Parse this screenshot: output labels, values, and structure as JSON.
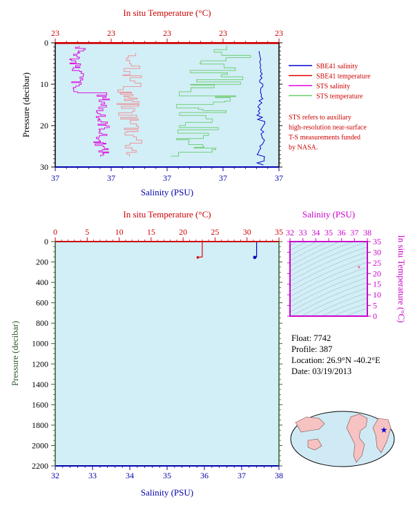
{
  "colors": {
    "plot_bg": "#d2eef7",
    "temperature_axis": "#cc0000",
    "salinity_axis": "#0000aa",
    "pressure_axis": "#2e5a2e",
    "ts_axis": "#cc00cc",
    "sbe_salinity": "#0000cc",
    "sbe_temperature": "#dd0000",
    "sts_salinity": "#dd00dd",
    "sts_temperature": "#66cc66",
    "sts_temperature_pink": "#f08a8a",
    "land": "#f6c2c2"
  },
  "top_panel": {
    "title_top": "In situ Temperature (°C)",
    "xlabel_bottom": "Salinity (PSU)",
    "ylabel": "Pressure (decibar)",
    "top_ticks": [
      "23",
      "23",
      "23",
      "23",
      "23"
    ],
    "bottom_ticks": [
      "37",
      "37",
      "37",
      "37",
      "37"
    ],
    "y_ticks": [
      "0",
      "10",
      "20",
      "30"
    ]
  },
  "legend": {
    "items": [
      "SBE41 salinity",
      "SBE41 temperature",
      "STS salinity",
      "STS temperature"
    ],
    "note_lines": [
      "STS refers to auxiliary",
      "high-resolution near-surface",
      "T-S measurements funded",
      "by NASA."
    ]
  },
  "bottom_panel": {
    "title_top": "In situ Temperature (°C)",
    "xlabel_bottom": "Salinity (PSU)",
    "ylabel": "Pressure (decibar)",
    "top_ticks": [
      "0",
      "5",
      "10",
      "15",
      "20",
      "25",
      "30",
      "35"
    ],
    "bottom_ticks": [
      "32",
      "33",
      "34",
      "35",
      "36",
      "37",
      "38"
    ],
    "y_ticks": [
      "0",
      "200",
      "400",
      "600",
      "800",
      "1000",
      "1200",
      "1400",
      "1600",
      "1800",
      "2000",
      "2200"
    ]
  },
  "ts_panel": {
    "title": "Salinity (PSU)",
    "ylabel": "In situ Temperature (°C)",
    "x_ticks": [
      "32",
      "33",
      "34",
      "35",
      "36",
      "37",
      "38"
    ],
    "y_ticks": [
      "0",
      "5",
      "10",
      "15",
      "20",
      "25",
      "30",
      "35"
    ]
  },
  "float_info": {
    "float": "Float:  7742",
    "profile": "Profile:  387",
    "location": "Location:  26.9°N  -40.2°E",
    "date": "Date:  03/19/2013"
  },
  "chart_data": [
    {
      "type": "line",
      "title": "",
      "ylabel": "Pressure (decibar)",
      "ylim": [
        0,
        30
      ],
      "x_top_label": "In situ Temperature (°C)",
      "x_bottom_label": "Salinity (PSU)",
      "series": [
        {
          "name": "SBE41 salinity",
          "x_units": "PSU",
          "points": [
            [
              37.42,
              1
            ],
            [
              37.42,
              30
            ]
          ]
        },
        {
          "name": "SBE41 temperature",
          "x_units": "°C",
          "points": [
            [
              23.0,
              0
            ],
            [
              23.0,
              0.5
            ]
          ]
        },
        {
          "name": "STS salinity",
          "x_units": "PSU",
          "points": [
            [
              37.35,
              0.5
            ],
            [
              37.37,
              28
            ]
          ]
        },
        {
          "name": "STS temperature",
          "x_units": "°C",
          "points": [
            [
              23.05,
              0.5
            ],
            [
              22.95,
              28
            ]
          ]
        }
      ]
    },
    {
      "type": "line",
      "title": "",
      "ylabel": "Pressure (decibar)",
      "ylim": [
        0,
        2200
      ],
      "xlim_temperature": [
        0,
        35
      ],
      "xlim_salinity": [
        32,
        38
      ],
      "series": [
        {
          "name": "SBE41 temperature",
          "x_units": "°C",
          "points": [
            [
              23.0,
              0
            ],
            [
              23.0,
              150
            ],
            [
              22.3,
              155
            ]
          ]
        },
        {
          "name": "SBE41 salinity",
          "x_units": "PSU",
          "points": [
            [
              37.4,
              0
            ],
            [
              37.4,
              150
            ],
            [
              37.35,
              155
            ]
          ]
        }
      ]
    },
    {
      "type": "scatter",
      "title": "Salinity (PSU)",
      "xlabel": "Salinity (PSU)",
      "ylabel": "In situ Temperature (°C)",
      "xlim": [
        32,
        38
      ],
      "ylim": [
        0,
        35
      ],
      "series": [
        {
          "name": "",
          "points": [
            [
              37.35,
              23.0
            ]
          ]
        }
      ]
    }
  ]
}
